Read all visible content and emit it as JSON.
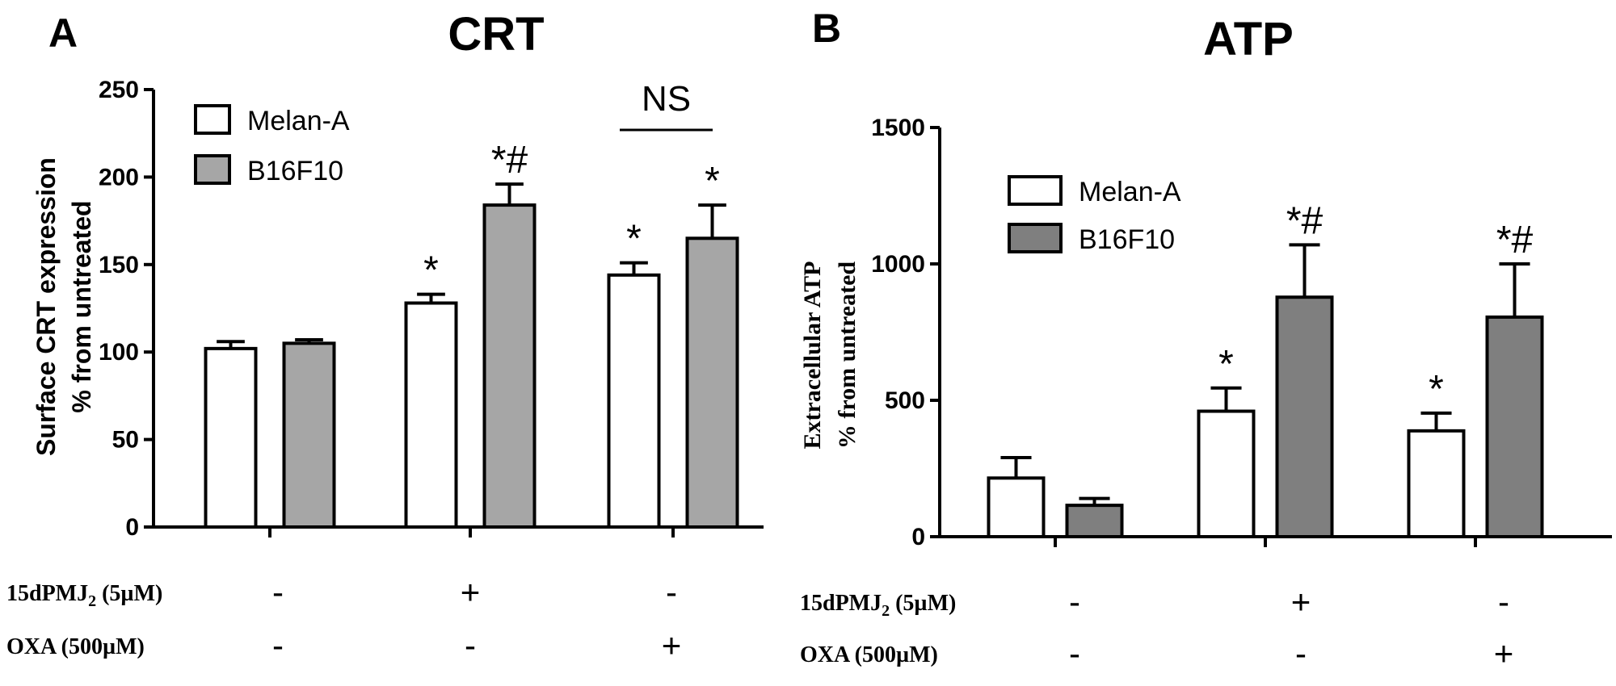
{
  "chart_data": [
    {
      "panel_letter": "A",
      "type": "bar",
      "title": "CRT",
      "ylabel_line1": "Surface CRT expression",
      "ylabel_line2": "% from untreated",
      "ylim": [
        0,
        250
      ],
      "yticks": [
        0,
        50,
        100,
        150,
        200,
        250
      ],
      "legend_position": "top-left",
      "grid": false,
      "groups": [
        "15dPMJ2 (5µM) - / OXA (500µM) -",
        "15dPMJ2 (5µM) + / OXA (500µM) -",
        "15dPMJ2 (5µM) - / OXA (500µM) +"
      ],
      "series": [
        {
          "name": "Melan-A",
          "values": [
            102,
            128,
            144
          ],
          "errors": [
            4,
            5,
            7
          ],
          "color": "#ffffff"
        },
        {
          "name": "B16F10",
          "values": [
            105,
            184,
            165
          ],
          "errors": [
            2,
            12,
            19
          ],
          "color": "#a6a6a6"
        }
      ],
      "annotations": [
        [
          "",
          ""
        ],
        [
          "*",
          "*#"
        ],
        [
          "*",
          "*"
        ]
      ],
      "bracket_label": "NS",
      "conditions": [
        {
          "label_main": "15dPMJ",
          "label_sub": "2",
          "label_rest": " (5µM)",
          "values": [
            "-",
            "+",
            "-"
          ]
        },
        {
          "label_main": "OXA (500µM)",
          "label_sub": "",
          "label_rest": "",
          "values": [
            "-",
            "-",
            "+"
          ]
        }
      ]
    },
    {
      "panel_letter": "B",
      "type": "bar",
      "title": "ATP",
      "ylabel_line1": "Extracellular ATP",
      "ylabel_line2": "% from untreated",
      "ylim": [
        0,
        1500
      ],
      "yticks": [
        0,
        500,
        1000,
        1500
      ],
      "legend_position": "top-left",
      "grid": false,
      "groups": [
        "15dPMJ2 (5µM) - / OXA (500µM) -",
        "15dPMJ2 (5µM) + / OXA (500µM) -",
        "15dPMJ2 (5µM) - / OXA (500µM) +"
      ],
      "series": [
        {
          "name": "Melan-A",
          "values": [
            215,
            460,
            388
          ],
          "errors": [
            75,
            85,
            65
          ],
          "color": "#ffffff"
        },
        {
          "name": "B16F10",
          "values": [
            115,
            878,
            805
          ],
          "errors": [
            25,
            192,
            195
          ],
          "color": "#7f7f7f"
        }
      ],
      "annotations": [
        [
          "",
          ""
        ],
        [
          "*",
          "*#"
        ],
        [
          "*",
          "*#"
        ]
      ],
      "bracket_label": "",
      "conditions": [
        {
          "label_main": "15dPMJ",
          "label_sub": "2",
          "label_rest": " (5µM)",
          "values": [
            "-",
            "+",
            "-"
          ]
        },
        {
          "label_main": "OXA (500µM)",
          "label_sub": "",
          "label_rest": "",
          "values": [
            "-",
            "-",
            "+"
          ]
        }
      ]
    }
  ]
}
